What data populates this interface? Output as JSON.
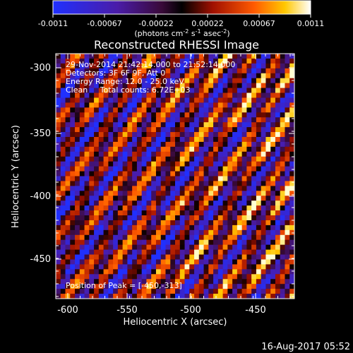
{
  "colorbar": {
    "ticks": [
      "-0.0011",
      "-0.00067",
      "-0.00022",
      "0.00022",
      "0.00067",
      "0.0011"
    ],
    "units_text": "(photons cm",
    "units_sup1": "-2",
    "units_mid": " s",
    "units_sup2": "-1",
    "units_tail": " asec",
    "units_sup3": "-2",
    "units_close": ")"
  },
  "annotations": {
    "time_range": "29-Nov-2014 21:42:14.000 to 21:52:14.000",
    "detectors": "Detectors: 3F 6F 9F, Att 0",
    "energy": "Energy Range: 12.0 - 25.0 keV",
    "clean": "Clean     Total counts: 6.72E+03",
    "peak": "Position of Peak = [-450,-313]"
  },
  "footer": {
    "date": "16-Aug-2017 05:52"
  },
  "chart_data": {
    "type": "heatmap",
    "title": "Reconstructed RHESSI Image",
    "xlabel": "Heliocentric X (arcsec)",
    "ylabel": "Heliocentric Y (arcsec)",
    "x_ticks": [
      -600,
      -550,
      -500,
      -450
    ],
    "y_ticks": [
      -300,
      -350,
      -400,
      -450
    ],
    "xlim": [
      -618,
      -418
    ],
    "ylim": [
      -487,
      -287
    ],
    "zlim": [
      -0.0011,
      0.0011
    ],
    "grid": false,
    "colormap": "red-temperature with blue negatives",
    "peak_position": [
      -450,
      -313
    ],
    "pattern": "diagonal alternating bright/dark fringe stripes across the field",
    "grid_cells": 50
  }
}
